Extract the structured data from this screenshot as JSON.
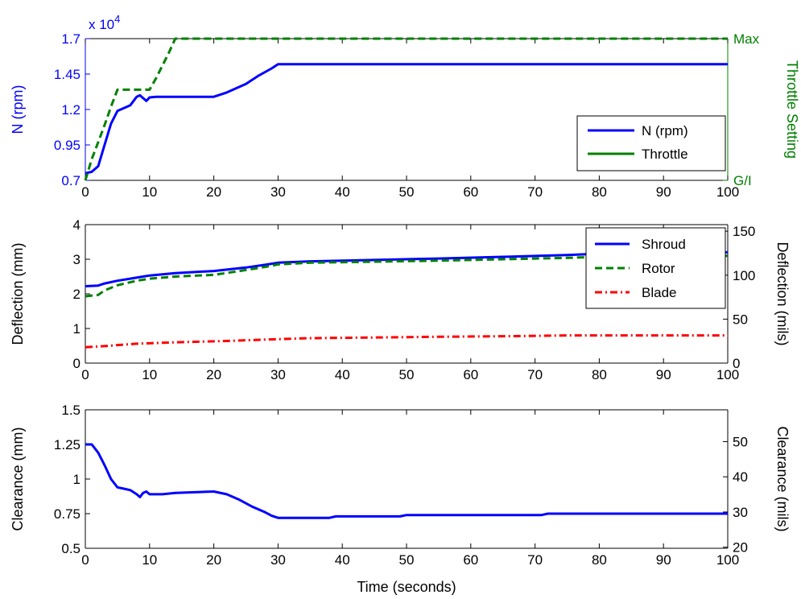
{
  "figure": {
    "xlabel": "Time (seconds)"
  },
  "chart_data": [
    {
      "type": "line",
      "ylabel": "N (rpm)",
      "ylabel_right": "Throttle Setting",
      "exponent_base": "x 10",
      "exponent_power": "4",
      "xlim": [
        0,
        100
      ],
      "ylim": [
        0.7,
        1.7
      ],
      "y_ticks": [
        0.7,
        0.95,
        1.2,
        1.45,
        1.7
      ],
      "y_tick_labels": [
        "0.7",
        "0.95",
        "1.2",
        "1.45",
        "1.7"
      ],
      "right_tick_labels": [
        "G/I",
        "Max"
      ],
      "x_ticks": [
        0,
        10,
        20,
        30,
        40,
        50,
        60,
        70,
        80,
        90,
        100
      ],
      "x_tick_labels": [
        "0",
        "10",
        "20",
        "30",
        "40",
        "50",
        "60",
        "70",
        "80",
        "90",
        "100"
      ],
      "legend_position": "right-middle",
      "grid": false,
      "left_axis_color": "#0000ff",
      "right_axis_color": "#008000",
      "series": [
        {
          "name": "N (rpm)",
          "color": "#0000ff",
          "style": "solid",
          "legend_style": "solid",
          "x": [
            0,
            1,
            2,
            3,
            4,
            5,
            6,
            7,
            8,
            8.5,
            9,
            9.5,
            10,
            11,
            12,
            20,
            22,
            25,
            27,
            29,
            30,
            100
          ],
          "y": [
            0.75,
            0.76,
            0.8,
            0.95,
            1.1,
            1.19,
            1.21,
            1.23,
            1.29,
            1.3,
            1.28,
            1.26,
            1.285,
            1.29,
            1.29,
            1.29,
            1.32,
            1.38,
            1.44,
            1.49,
            1.52,
            1.52
          ]
        },
        {
          "name": "Throttle",
          "color": "#008000",
          "style": "dashed",
          "legend_style": "solid",
          "x": [
            0,
            1,
            2,
            3,
            4,
            5,
            6,
            9,
            10,
            11,
            12,
            13,
            14,
            100
          ],
          "y": [
            0.7,
            0.85,
            0.97,
            1.09,
            1.22,
            1.34,
            1.34,
            1.34,
            1.34,
            1.42,
            1.51,
            1.6,
            1.7,
            1.7
          ]
        }
      ]
    },
    {
      "type": "line",
      "ylabel": "Deflection (mm)",
      "ylabel_right": "Deflection (mils)",
      "xlim": [
        0,
        100
      ],
      "ylim": [
        0,
        4
      ],
      "y_ticks": [
        0,
        1,
        2,
        3,
        4
      ],
      "y_tick_labels": [
        "0",
        "1",
        "2",
        "3",
        "4"
      ],
      "right_ticks_mm": [
        0,
        1.27,
        2.54,
        3.81
      ],
      "right_tick_labels": [
        "0",
        "50",
        "100",
        "150"
      ],
      "x_ticks": [
        0,
        10,
        20,
        30,
        40,
        50,
        60,
        70,
        80,
        90,
        100
      ],
      "x_tick_labels": [
        "0",
        "10",
        "20",
        "30",
        "40",
        "50",
        "60",
        "70",
        "80",
        "90",
        "100"
      ],
      "legend_position": "top-right",
      "grid": false,
      "series": [
        {
          "name": "Shroud",
          "color": "#0000ff",
          "style": "solid",
          "x": [
            0,
            2,
            3,
            5,
            7,
            9,
            10,
            14,
            20,
            25,
            28,
            30,
            35,
            45,
            55,
            65,
            75,
            80,
            100
          ],
          "y": [
            2.22,
            2.24,
            2.3,
            2.38,
            2.44,
            2.5,
            2.53,
            2.6,
            2.66,
            2.76,
            2.84,
            2.9,
            2.94,
            2.98,
            3.02,
            3.07,
            3.12,
            3.16,
            3.2
          ]
        },
        {
          "name": "Rotor",
          "color": "#008000",
          "style": "dashed",
          "x": [
            0,
            2,
            3,
            5,
            8,
            10,
            14,
            20,
            24,
            28,
            30,
            35,
            45,
            55,
            65,
            75,
            80,
            100
          ],
          "y": [
            1.93,
            1.97,
            2.1,
            2.25,
            2.38,
            2.44,
            2.5,
            2.55,
            2.66,
            2.78,
            2.85,
            2.9,
            2.93,
            2.96,
            3.0,
            3.04,
            3.07,
            3.1
          ]
        },
        {
          "name": "Blade",
          "color": "#ff0000",
          "style": "dashdot",
          "x": [
            0,
            3,
            5,
            8,
            14,
            22,
            28,
            35,
            45,
            55,
            67,
            75,
            100
          ],
          "y": [
            0.46,
            0.49,
            0.52,
            0.56,
            0.6,
            0.64,
            0.68,
            0.72,
            0.74,
            0.76,
            0.78,
            0.8,
            0.8
          ]
        }
      ]
    },
    {
      "type": "line",
      "ylabel": "Clearance (mm)",
      "ylabel_right": "Clearance (mils)",
      "xlim": [
        0,
        100
      ],
      "ylim": [
        0.5,
        1.5
      ],
      "y_ticks": [
        0.5,
        0.75,
        1,
        1.25,
        1.5
      ],
      "y_tick_labels": [
        "0.5",
        "0.75",
        "1",
        "1.25",
        "1.5"
      ],
      "right_ticks_mm": [
        0.508,
        0.762,
        1.016,
        1.27
      ],
      "right_tick_labels": [
        "20",
        "30",
        "40",
        "50"
      ],
      "x_ticks": [
        0,
        10,
        20,
        30,
        40,
        50,
        60,
        70,
        80,
        90,
        100
      ],
      "x_tick_labels": [
        "0",
        "10",
        "20",
        "30",
        "40",
        "50",
        "60",
        "70",
        "80",
        "90",
        "100"
      ],
      "grid": false,
      "series": [
        {
          "color": "#0000ff",
          "style": "solid",
          "x": [
            0,
            1,
            2,
            3,
            4,
            5,
            6,
            7,
            8,
            8.5,
            9,
            9.5,
            10,
            12,
            14,
            20,
            22,
            24,
            26,
            28,
            29,
            30,
            38,
            39,
            49,
            50,
            71,
            72,
            100
          ],
          "y": [
            1.25,
            1.25,
            1.19,
            1.1,
            1.0,
            0.94,
            0.93,
            0.92,
            0.89,
            0.87,
            0.9,
            0.91,
            0.89,
            0.89,
            0.9,
            0.91,
            0.89,
            0.85,
            0.8,
            0.76,
            0.735,
            0.72,
            0.72,
            0.73,
            0.73,
            0.74,
            0.74,
            0.75,
            0.75
          ]
        }
      ]
    }
  ]
}
